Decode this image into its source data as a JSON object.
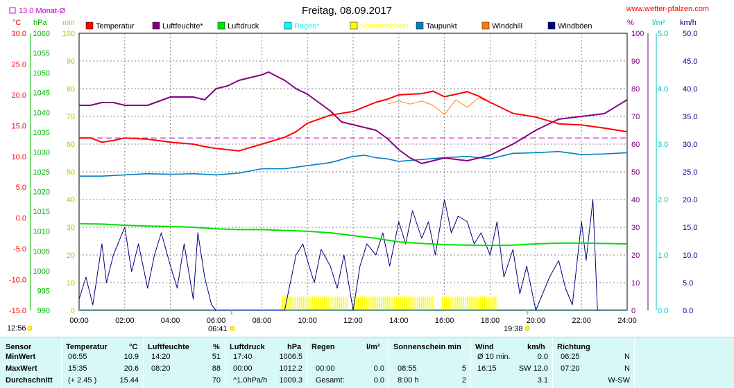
{
  "header": {
    "title": "Freitag, 08.09.2017",
    "website": "www.wetter-pfalzen.com",
    "monthly_avg_label": "13.0 Monat-Ø"
  },
  "axes_units": {
    "temp": "°C",
    "pressure": "hPa",
    "minutes": "min",
    "humidity": "%",
    "rain": "l/m²",
    "wind": "km/h"
  },
  "time_markers": {
    "left_time": "12:56",
    "sunrise": "06:41",
    "sunset": "19:38"
  },
  "colors": {
    "temperature": "#ff0000",
    "humidity": "#800080",
    "pressure": "#00e000",
    "rain": "#00ffff",
    "sunshine": "#ffff00",
    "dewpoint": "#0080c0",
    "windchill": "#ff8000",
    "gusts": "#000080",
    "monthly_avg": "#c000c0"
  },
  "chart_data": {
    "type": "line",
    "title": "Freitag, 08.09.2017",
    "x_ticks": [
      "00:00",
      "02:00",
      "04:00",
      "06:00",
      "08:00",
      "10:00",
      "12:00",
      "14:00",
      "16:00",
      "18:00",
      "20:00",
      "22:00",
      "24:00"
    ],
    "left_axes": {
      "temp_c": {
        "range": [
          -15,
          30
        ],
        "ticks": [
          "30.0",
          "25.0",
          "20.0",
          "15.0",
          "10.0",
          "5.0",
          "0.0",
          "-5.0",
          "-10.0",
          "-15.0"
        ]
      },
      "pressure_hpa": {
        "range": [
          990,
          1060
        ],
        "ticks": [
          "1060",
          "1055",
          "1050",
          "1045",
          "1040",
          "1035",
          "1030",
          "1025",
          "1020",
          "1015",
          "1010",
          "1005",
          "1000",
          "995",
          "990"
        ]
      },
      "minutes": {
        "range": [
          0,
          100
        ],
        "ticks": [
          "100",
          "90",
          "80",
          "70",
          "60",
          "50",
          "40",
          "30",
          "20",
          "10",
          "0"
        ]
      }
    },
    "right_axes": {
      "humidity_pct": {
        "range": [
          0,
          100
        ],
        "ticks": [
          "100",
          "90",
          "80",
          "70",
          "60",
          "50",
          "40",
          "30",
          "20",
          "10",
          "0"
        ]
      },
      "rain_lm2": {
        "range": [
          0,
          5
        ],
        "ticks": [
          "5.0",
          "4.0",
          "3.0",
          "2.0",
          "1.0",
          "0.0"
        ]
      },
      "wind_kmh": {
        "range": [
          0,
          50
        ],
        "ticks": [
          "50.0",
          "45.0",
          "40.0",
          "35.0",
          "30.0",
          "25.0",
          "20.0",
          "15.0",
          "10.0",
          "5.0",
          "0.0"
        ]
      }
    },
    "legend": [
      "Temperatur",
      "Luftfeuchte*",
      "Luftdruck",
      "Regen*",
      "Sonnenschein",
      "Taupunkt",
      "Windchill",
      "Windböen"
    ],
    "monthly_avg_temp": 13.0,
    "series": [
      {
        "name": "Temperatur",
        "unit": "°C",
        "x": [
          0,
          0.5,
          1,
          1.5,
          2,
          3,
          4,
          5,
          5.5,
          6,
          6.5,
          7,
          8,
          9,
          9.5,
          10,
          11,
          12,
          13,
          13.5,
          14,
          15,
          15.5,
          16,
          17,
          17.5,
          18,
          19,
          20,
          21,
          22,
          23,
          24
        ],
        "values": [
          13.0,
          13.0,
          12.3,
          12.6,
          13.0,
          12.8,
          12.3,
          12.0,
          11.6,
          11.3,
          11.1,
          10.9,
          12.0,
          13.1,
          14.0,
          15.4,
          16.7,
          17.3,
          18.8,
          19.3,
          20.0,
          20.2,
          20.6,
          19.7,
          20.5,
          19.8,
          18.8,
          17.0,
          16.4,
          15.3,
          15.1,
          14.6,
          14.0
        ]
      },
      {
        "name": "Luftfeuchte*",
        "unit": "%",
        "x": [
          0,
          0.5,
          1,
          1.5,
          2,
          3,
          4,
          5,
          5.5,
          6,
          6.5,
          7,
          7.5,
          8,
          8.3,
          9,
          9.5,
          10,
          11,
          11.5,
          12,
          12.5,
          13,
          13.5,
          14,
          14.5,
          15,
          16,
          17,
          18,
          19,
          20,
          21,
          22,
          23,
          24
        ],
        "values": [
          74,
          74,
          75,
          75,
          74,
          74,
          77,
          77,
          76,
          80,
          81,
          83,
          84,
          85,
          86,
          83,
          80,
          78,
          72,
          68,
          67,
          66,
          65,
          62,
          58,
          55,
          53,
          55,
          54,
          56,
          60,
          65,
          69,
          70,
          71,
          76
        ]
      },
      {
        "name": "Luftdruck",
        "unit": "hPa",
        "x": [
          0,
          1,
          2,
          3,
          4,
          5,
          6,
          7,
          8,
          9,
          10,
          11,
          12,
          13,
          14,
          15,
          16,
          17,
          18,
          19,
          20,
          21,
          22,
          23,
          24
        ],
        "values": [
          1011.9,
          1011.8,
          1011.5,
          1011.3,
          1011.2,
          1011.0,
          1010.6,
          1010.4,
          1010.4,
          1010.2,
          1010.0,
          1009.6,
          1008.9,
          1008.2,
          1007.3,
          1006.9,
          1006.6,
          1006.5,
          1006.4,
          1006.5,
          1006.8,
          1007.0,
          1007.0,
          1006.9,
          1006.8
        ]
      },
      {
        "name": "Taupunkt",
        "unit": "°C",
        "x": [
          0,
          1,
          2,
          3,
          4,
          5,
          6,
          7,
          8,
          9,
          10,
          11,
          12,
          12.5,
          13,
          13.5,
          14,
          15,
          16,
          17,
          18,
          19,
          20,
          21,
          22,
          23,
          24
        ],
        "values": [
          6.8,
          6.8,
          7.0,
          7.2,
          7.1,
          7.2,
          7.0,
          7.3,
          8.0,
          8.0,
          8.5,
          9.0,
          10.0,
          10.2,
          9.8,
          9.6,
          9.2,
          9.5,
          9.8,
          10.0,
          9.6,
          10.5,
          10.6,
          10.8,
          10.3,
          10.4,
          10.6
        ]
      },
      {
        "name": "Windchill",
        "unit": "°C",
        "x": [
          13.5,
          14,
          14.5,
          15,
          15.5,
          16,
          16.5,
          17,
          17.5,
          18
        ],
        "values": [
          18.5,
          19.0,
          18.5,
          19.0,
          18.3,
          16.8,
          19.2,
          18.0,
          19.5,
          18.8
        ]
      },
      {
        "name": "Windböen",
        "unit": "km/h",
        "x": [
          0,
          0.3,
          0.6,
          1,
          1.2,
          1.5,
          2,
          2.3,
          2.6,
          3,
          3.3,
          3.6,
          4,
          4.3,
          4.6,
          5,
          5.2,
          5.5,
          5.8,
          6,
          6.5,
          7,
          8,
          9,
          9.2,
          9.5,
          9.8,
          10,
          10.3,
          10.6,
          11,
          11.3,
          11.6,
          12,
          12.3,
          12.6,
          13,
          13.3,
          13.6,
          14,
          14.3,
          14.6,
          15,
          15.3,
          15.6,
          16,
          16.3,
          16.6,
          17,
          17.3,
          17.6,
          18,
          18.3,
          18.6,
          19,
          19.3,
          19.6,
          20,
          20.3,
          20.6,
          21,
          21.3,
          21.6,
          22,
          22.2,
          22.5,
          22.7,
          23
        ],
        "values": [
          2,
          6,
          1,
          12,
          5,
          10,
          15,
          7,
          12,
          4,
          10,
          14,
          8,
          4,
          12,
          2,
          14,
          6,
          1,
          0,
          0,
          0,
          0,
          0,
          4,
          10,
          12,
          9,
          5,
          11,
          8,
          4,
          10,
          0,
          8,
          12,
          10,
          14,
          8,
          16,
          12,
          18,
          13,
          16,
          10,
          20,
          14,
          17,
          16,
          12,
          14,
          10,
          16,
          6,
          11,
          3,
          8,
          0,
          3,
          6,
          9,
          4,
          1,
          16,
          9,
          20,
          0,
          0
        ]
      }
    ],
    "sunshine_bars": {
      "start_hour": 8.9,
      "end_hour": 18.3,
      "gaps": [
        [
          11.8,
          12.0
        ],
        [
          15.5,
          15.9
        ]
      ],
      "value_min": 5
    },
    "sunrise_hour": 6.683,
    "sunset_hour": 19.633
  },
  "table": {
    "headers": {
      "sensor": "Sensor",
      "temp": "Temperatur",
      "temp_unit": "°C",
      "hum": "Luftfeuchte",
      "hum_unit": "%",
      "press": "Luftdruck",
      "press_unit": "hPa",
      "rain": "Regen",
      "rain_unit": "l/m²",
      "sun": "Sonnenschein min",
      "wind": "Wind",
      "wind_unit": "km/h",
      "dir": "Richtung"
    },
    "rows": [
      {
        "label": "MinWert",
        "temp_time": "06:55",
        "temp_val": "10.9",
        "hum_time": "14:20",
        "hum_val": "51",
        "press_time": "17:40",
        "press_val": "1006.5",
        "rain_time": "",
        "rain_val": "",
        "sun_time": "",
        "sun_val": "",
        "wind_time": "Ø 10 min.",
        "wind_val": "0.0",
        "dir_time": "06:25",
        "dir_val": "N"
      },
      {
        "label": "MaxWert",
        "temp_time": "15:35",
        "temp_val": "20.6",
        "hum_time": "08:20",
        "hum_val": "88",
        "press_time": "00:00",
        "press_val": "1012.2",
        "rain_time": "00:00",
        "rain_val": "0.0",
        "sun_time": "08:55",
        "sun_val": "5",
        "wind_time": "16:15",
        "wind_val": "SW 12.0",
        "dir_time": "07:20",
        "dir_val": "N"
      },
      {
        "label": "Durchschnitt",
        "temp_time": "(+ 2.45 )",
        "temp_val": "15.44",
        "hum_time": "",
        "hum_val": "70",
        "press_time": "^1.0hPa/h",
        "press_val": "1009.3",
        "rain_time": "Gesamt:",
        "rain_val": "0.0",
        "sun_time": "8:00 h",
        "sun_val": "2",
        "wind_time": "",
        "wind_val": "3.1",
        "dir_time": "",
        "dir_val": "W-SW"
      }
    ]
  }
}
